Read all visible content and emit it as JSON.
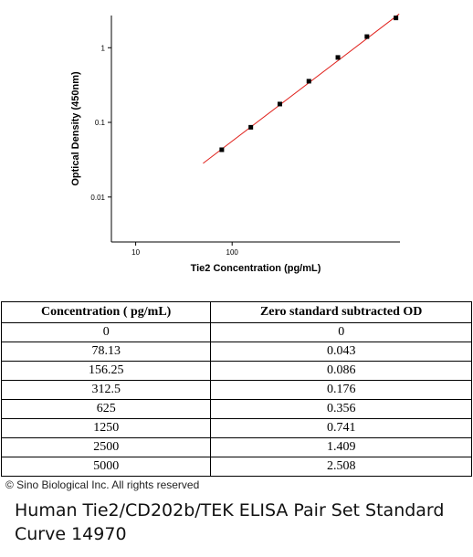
{
  "chart_data": {
    "type": "scatter",
    "x_label": "Tie2 Concentration (pg/mL)",
    "y_label": "Optical Density (450nm)",
    "x": [
      78.13,
      156.25,
      312.5,
      625,
      1250,
      2500,
      5000
    ],
    "values": [
      0.043,
      0.086,
      0.176,
      0.356,
      0.741,
      1.409,
      2.508
    ],
    "color": "#000000",
    "fit_line": {
      "color": "#e0201b",
      "x": [
        50,
        5400
      ],
      "values": [
        0.0283,
        2.83
      ]
    },
    "x_log": true,
    "y_log": true,
    "xlim": [
      5.6,
      5500
    ],
    "ylim": [
      0.0025,
      2.7
    ],
    "xticks": [
      10,
      100
    ],
    "yticks": [
      0.01,
      0.1,
      1
    ]
  },
  "table": {
    "header": [
      "Concentration ( pg/mL)",
      "Zero standard subtracted OD"
    ],
    "rows": [
      [
        0,
        0
      ],
      [
        78.13,
        0.043
      ],
      [
        156.25,
        0.086
      ],
      [
        312.5,
        0.176
      ],
      [
        625,
        0.356
      ],
      [
        1250,
        0.741
      ],
      [
        2500,
        1.409
      ],
      [
        5000,
        2.508
      ]
    ]
  },
  "copyright": "© Sino Biological Inc. All rights reserved",
  "caption": "Human Tie2/CD202b/TEK ELISA Pair Set Standard Curve 14970"
}
